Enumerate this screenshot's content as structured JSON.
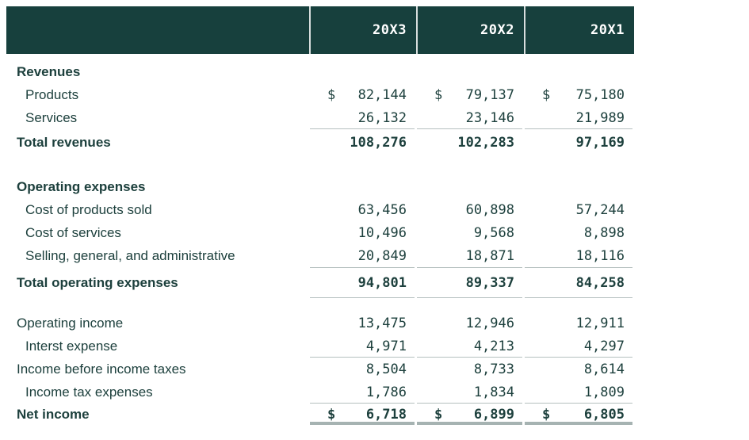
{
  "currency": "$",
  "columns": [
    "20X3",
    "20X2",
    "20X1"
  ],
  "rows": [
    {
      "label": "Revenues"
    },
    {
      "label": "Products",
      "values": [
        "82,144",
        "79,137",
        "75,180"
      ]
    },
    {
      "label": "Services",
      "values": [
        "26,132",
        "23,146",
        "21,989"
      ]
    },
    {
      "label": "Total revenues",
      "values": [
        "108,276",
        "102,283",
        "97,169"
      ]
    },
    {
      "label": "Operating expenses"
    },
    {
      "label": "Cost of products sold",
      "values": [
        "63,456",
        "60,898",
        "57,244"
      ]
    },
    {
      "label": "Cost of services",
      "values": [
        "10,496",
        "9,568",
        "8,898"
      ]
    },
    {
      "label": "Selling, general, and administrative",
      "values": [
        "20,849",
        "18,871",
        "18,116"
      ]
    },
    {
      "label": "Total operating expenses",
      "values": [
        "94,801",
        "89,337",
        "84,258"
      ]
    },
    {
      "label": "Operating income",
      "values": [
        "13,475",
        "12,946",
        "12,911"
      ]
    },
    {
      "label": "Interst expense",
      "values": [
        "4,971",
        "4,213",
        "4,297"
      ]
    },
    {
      "label": "Income before income taxes",
      "values": [
        "8,504",
        "8,733",
        "8,614"
      ]
    },
    {
      "label": "Income tax expenses",
      "values": [
        "1,786",
        "1,834",
        "1,809"
      ]
    },
    {
      "label": "Net income",
      "values": [
        "6,718",
        "6,899",
        "6,805"
      ]
    }
  ],
  "colors": {
    "header_background": "#17403d",
    "header_text": "#ffffff",
    "body_text": "#1d403d",
    "rule_line": "#b5c0bf",
    "thick_rule_line": "#a6b3b2",
    "header_divider": "#d8dede"
  }
}
